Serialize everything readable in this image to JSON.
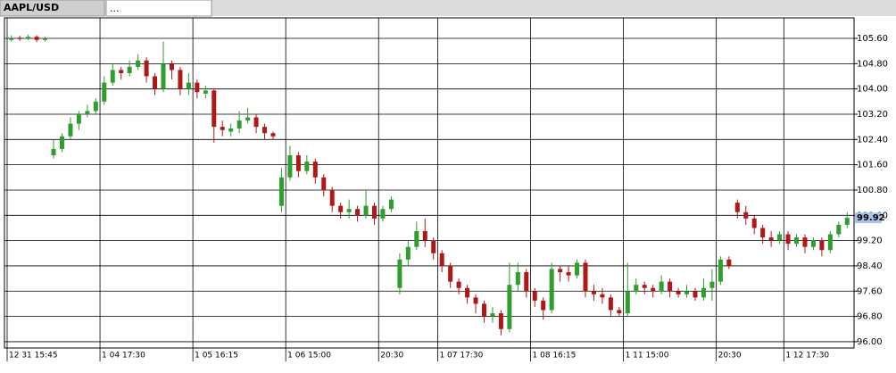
{
  "chart_data": {
    "type": "candlestick",
    "title": "AAPL/USD",
    "tab2": "...",
    "up_color": "#2e9e2e",
    "down_color": "#b01818",
    "grid": true,
    "ylim": [
      95.8,
      106.25
    ],
    "yticks": [
      {
        "value": 105.6,
        "label": "105.60"
      },
      {
        "value": 104.8,
        "label": "104.80"
      },
      {
        "value": 104.0,
        "label": "104.00"
      },
      {
        "value": 103.2,
        "label": "103.20"
      },
      {
        "value": 102.4,
        "label": "102.40"
      },
      {
        "value": 101.6,
        "label": "101.60"
      },
      {
        "value": 100.8,
        "label": "100.80"
      },
      {
        "value": 100.0,
        "label": "100.00"
      },
      {
        "value": 99.2,
        "label": "99.20"
      },
      {
        "value": 98.4,
        "label": "98.40"
      },
      {
        "value": 97.6,
        "label": "97.60"
      },
      {
        "value": 96.8,
        "label": "96.80"
      },
      {
        "value": 96.0,
        "label": "96.00"
      }
    ],
    "categories": [
      "12 31 15:45",
      null,
      null,
      null,
      null,
      null,
      null,
      null,
      null,
      null,
      null,
      "1 04 17:30",
      null,
      null,
      null,
      null,
      null,
      null,
      null,
      null,
      null,
      null,
      "1 05 16:15",
      null,
      null,
      null,
      null,
      null,
      null,
      null,
      null,
      null,
      null,
      "1 06 15:00",
      null,
      null,
      null,
      null,
      null,
      null,
      null,
      null,
      null,
      null,
      "20:30",
      null,
      null,
      null,
      null,
      null,
      null,
      "1 07 17:30",
      null,
      null,
      null,
      null,
      null,
      null,
      null,
      null,
      null,
      null,
      "1 08 16:15",
      null,
      null,
      null,
      null,
      null,
      null,
      null,
      null,
      null,
      null,
      "1 11 15:00",
      null,
      null,
      null,
      null,
      null,
      null,
      null,
      null,
      null,
      null,
      "20:30",
      null,
      null,
      null,
      null,
      null,
      null,
      null,
      "1 12 17:30",
      null,
      null,
      null,
      null,
      null,
      null,
      null
    ],
    "open": [
      105.55,
      105.62,
      105.58,
      105.65,
      105.55,
      101.9,
      102.1,
      102.5,
      102.9,
      103.2,
      103.3,
      103.6,
      104.2,
      104.6,
      104.5,
      104.7,
      104.9,
      104.4,
      104.0,
      104.8,
      104.6,
      104.0,
      104.2,
      103.85,
      103.95,
      102.8,
      102.65,
      102.75,
      103.0,
      103.1,
      102.8,
      102.6,
      100.3,
      101.2,
      101.9,
      101.4,
      101.7,
      101.2,
      100.8,
      100.3,
      100.1,
      100.2,
      100.0,
      100.3,
      99.9,
      100.2,
      97.7,
      98.6,
      99.0,
      99.5,
      99.2,
      98.8,
      98.4,
      97.9,
      97.7,
      97.4,
      97.2,
      96.8,
      96.9,
      96.4,
      97.8,
      98.2,
      97.6,
      97.3,
      97.0,
      98.3,
      98.2,
      98.1,
      98.5,
      97.6,
      97.5,
      97.4,
      97.0,
      96.9,
      97.6,
      97.8,
      97.7,
      97.6,
      97.9,
      97.6,
      97.5,
      97.6,
      97.4,
      97.7,
      97.9,
      98.6,
      100.4,
      100.1,
      99.9,
      99.6,
      99.3,
      99.2,
      99.4,
      99.1,
      99.3,
      99.0,
      99.2,
      98.9,
      99.4,
      99.7
    ],
    "high": [
      105.7,
      105.68,
      105.72,
      105.7,
      105.66,
      102.4,
      102.6,
      103.1,
      103.3,
      103.5,
      103.7,
      104.4,
      104.8,
      104.7,
      104.9,
      105.1,
      105.0,
      104.5,
      105.5,
      104.9,
      104.7,
      104.5,
      104.3,
      104.1,
      104.0,
      103.0,
      102.9,
      103.3,
      103.4,
      103.2,
      102.9,
      102.65,
      101.5,
      102.2,
      102.0,
      101.9,
      101.8,
      101.3,
      100.9,
      100.4,
      100.5,
      100.3,
      100.8,
      100.4,
      100.3,
      100.6,
      98.8,
      99.2,
      99.8,
      99.9,
      99.3,
      98.9,
      98.5,
      98.0,
      97.8,
      97.5,
      97.3,
      97.1,
      97.0,
      98.5,
      98.5,
      98.3,
      97.7,
      97.4,
      98.5,
      98.4,
      98.4,
      98.6,
      98.6,
      97.8,
      97.7,
      97.5,
      97.1,
      98.5,
      98.0,
      97.9,
      97.8,
      98.1,
      98.0,
      97.7,
      97.8,
      97.7,
      98.0,
      98.3,
      98.7,
      98.7,
      100.5,
      100.3,
      100.0,
      99.7,
      99.5,
      99.5,
      99.5,
      99.4,
      99.4,
      99.3,
      99.3,
      99.5,
      99.8,
      100.1
    ],
    "low": [
      105.5,
      105.52,
      105.54,
      105.48,
      105.5,
      101.8,
      102.0,
      102.4,
      102.7,
      103.1,
      103.2,
      103.5,
      104.1,
      104.3,
      104.4,
      104.6,
      104.2,
      103.8,
      103.9,
      104.3,
      103.8,
      103.8,
      103.7,
      103.7,
      102.3,
      102.5,
      102.5,
      102.6,
      102.9,
      102.6,
      102.4,
      102.4,
      100.1,
      101.1,
      101.2,
      101.3,
      101.0,
      100.6,
      100.1,
      99.9,
      99.9,
      99.8,
      99.9,
      99.7,
      99.8,
      100.1,
      97.5,
      98.4,
      98.9,
      99.0,
      98.6,
      98.2,
      97.7,
      97.5,
      97.2,
      96.9,
      96.6,
      96.6,
      96.2,
      96.3,
      97.6,
      97.4,
      97.1,
      96.7,
      96.9,
      97.9,
      97.9,
      98.0,
      97.4,
      97.3,
      97.2,
      96.8,
      96.8,
      96.8,
      97.5,
      97.5,
      97.4,
      97.5,
      97.4,
      97.4,
      97.4,
      97.3,
      97.3,
      97.3,
      97.8,
      98.3,
      99.9,
      99.7,
      99.4,
      99.1,
      99.0,
      99.1,
      98.9,
      99.0,
      98.8,
      98.9,
      98.7,
      98.8,
      99.3,
      99.6
    ],
    "close": [
      105.62,
      105.58,
      105.65,
      105.55,
      105.6,
      102.1,
      102.5,
      102.9,
      103.2,
      103.3,
      103.6,
      104.2,
      104.6,
      104.5,
      104.7,
      104.9,
      104.4,
      104.0,
      104.8,
      104.6,
      104.0,
      104.2,
      103.9,
      103.95,
      102.8,
      102.7,
      102.75,
      103.0,
      103.1,
      102.8,
      102.6,
      102.5,
      101.2,
      101.9,
      101.4,
      101.7,
      101.2,
      100.8,
      100.3,
      100.1,
      100.2,
      100.0,
      100.3,
      99.9,
      100.2,
      100.5,
      98.6,
      99.0,
      99.5,
      99.2,
      98.8,
      98.4,
      97.9,
      97.7,
      97.4,
      97.2,
      96.8,
      96.9,
      96.4,
      97.8,
      98.2,
      97.6,
      97.3,
      97.0,
      98.3,
      98.2,
      98.1,
      98.5,
      97.6,
      97.5,
      97.4,
      97.0,
      96.9,
      97.6,
      97.8,
      97.7,
      97.6,
      97.9,
      97.6,
      97.5,
      97.6,
      97.4,
      97.7,
      97.9,
      98.6,
      98.4,
      100.1,
      99.9,
      99.6,
      99.3,
      99.2,
      99.4,
      99.1,
      99.3,
      99.0,
      99.2,
      98.9,
      99.4,
      99.7,
      99.92
    ]
  }
}
